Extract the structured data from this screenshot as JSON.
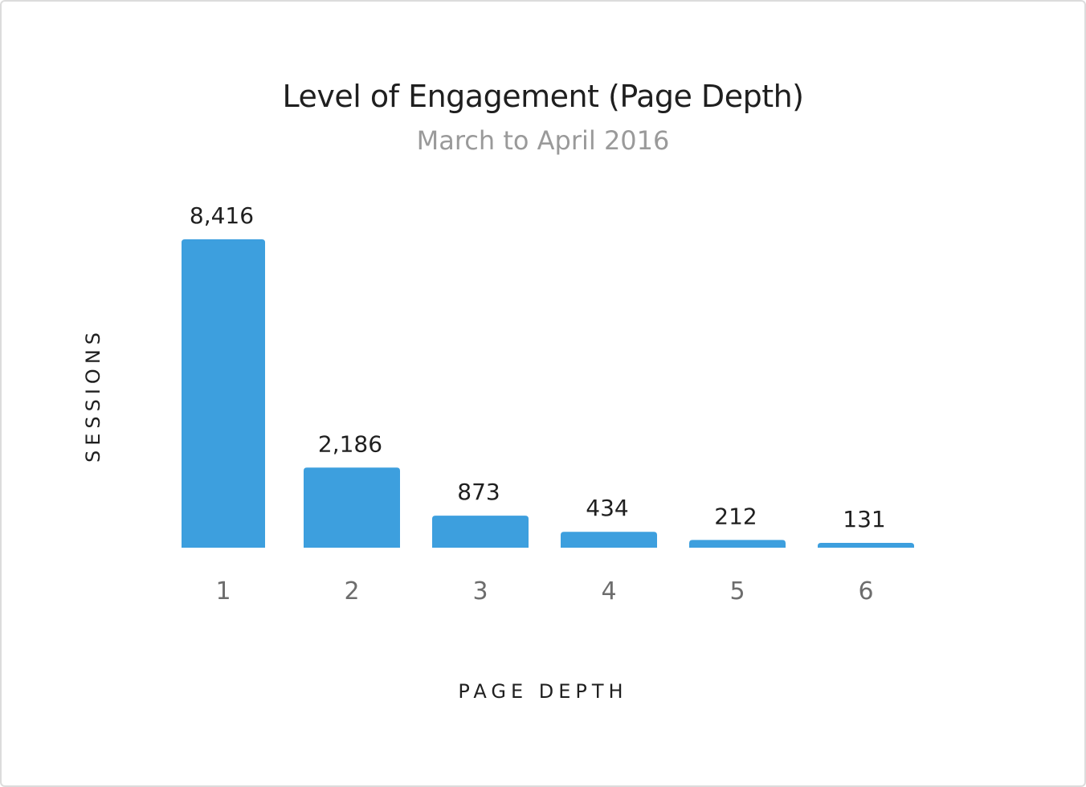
{
  "chart_data": {
    "type": "bar",
    "title": "Level of Engagement (Page Depth)",
    "subtitle": "March to April 2016",
    "xlabel": "PAGE DEPTH",
    "ylabel": "SESSIONS",
    "categories": [
      "1",
      "2",
      "3",
      "4",
      "5",
      "6"
    ],
    "values": [
      8416,
      2186,
      873,
      434,
      212,
      131
    ],
    "value_labels": [
      "8,416",
      "2,186",
      "873",
      "434",
      "212",
      "131"
    ],
    "ylim": [
      0,
      8416
    ],
    "grid": false,
    "bar_color": "#3d9fde"
  }
}
